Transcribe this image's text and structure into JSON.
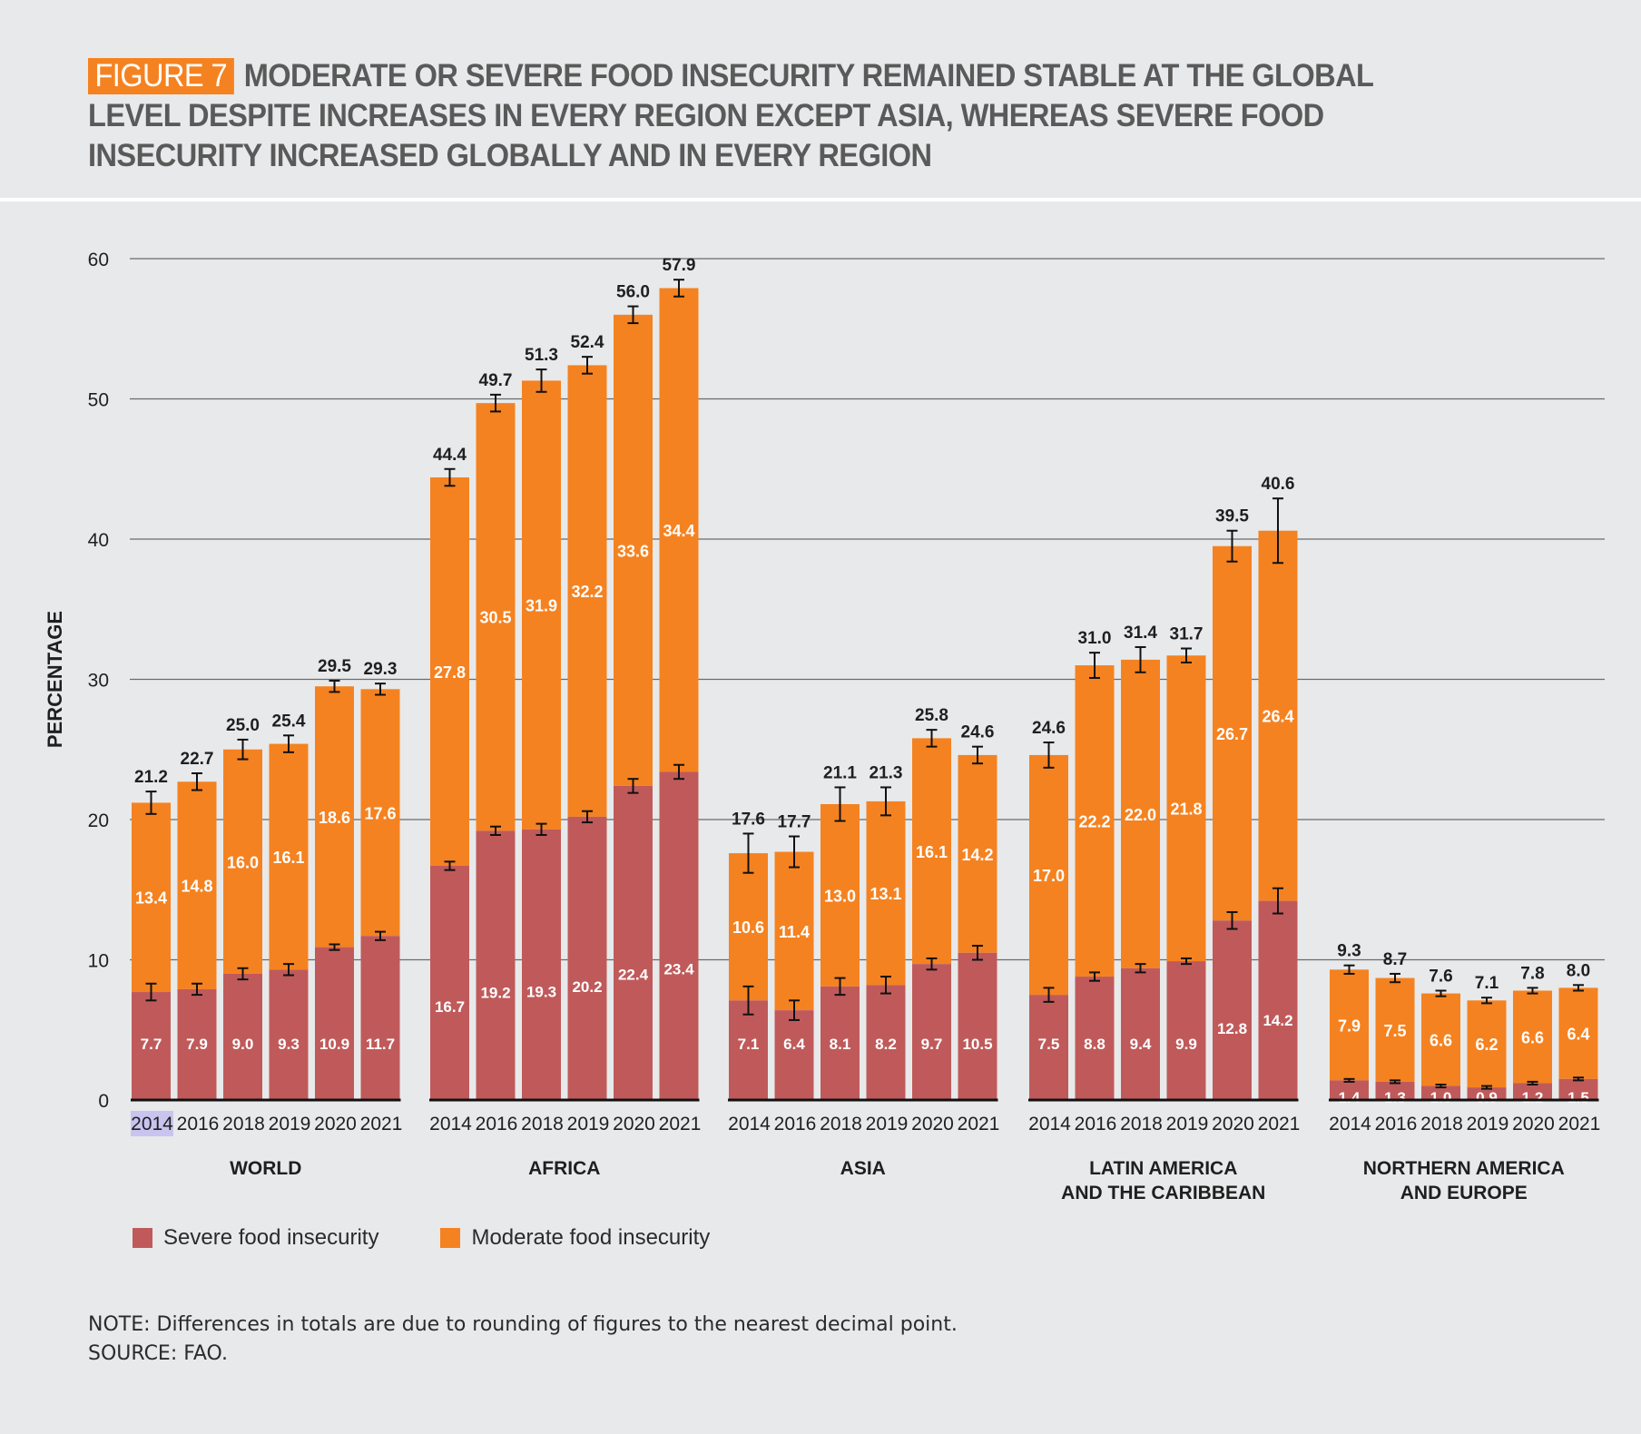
{
  "title": {
    "badge": "FIGURE 7",
    "text": "MODERATE OR SEVERE FOOD INSECURITY REMAINED STABLE AT THE GLOBAL LEVEL DESPITE INCREASES IN EVERY REGION EXCEPT ASIA, WHEREAS SEVERE FOOD INSECURITY INCREASED GLOBALLY AND IN EVERY REGION"
  },
  "legend": {
    "severe": "Severe food insecurity",
    "moderate": "Moderate food insecurity"
  },
  "note": {
    "line1": "NOTE: Differences in totals are due to rounding of figures to the nearest decimal point.",
    "line2": "SOURCE: FAO."
  },
  "colors": {
    "severe": "#c05a5a",
    "moderate": "#f58220",
    "grid": "#6b6b6b",
    "text": "#1f1f1f",
    "highlight": "#c7c5ef"
  },
  "chart_data": {
    "type": "bar",
    "stacked": true,
    "ylabel": "PERCENTAGE",
    "ylim": [
      0,
      60
    ],
    "yticks": [
      0,
      10,
      20,
      30,
      40,
      50,
      60
    ],
    "years": [
      "2014",
      "2016",
      "2018",
      "2019",
      "2020",
      "2021"
    ],
    "highlighted_tick": "2014",
    "groups": [
      {
        "name": "WORLD",
        "label_lines": [
          "WORLD"
        ],
        "severe": [
          7.7,
          7.9,
          9.0,
          9.3,
          10.9,
          11.7
        ],
        "moderate": [
          13.4,
          14.8,
          16.0,
          16.1,
          18.6,
          17.6
        ],
        "total": [
          21.2,
          22.7,
          25.0,
          25.4,
          29.5,
          29.3
        ],
        "total_err": [
          0.8,
          0.6,
          0.7,
          0.6,
          0.4,
          0.4
        ],
        "severe_err": [
          0.6,
          0.4,
          0.4,
          0.4,
          0.2,
          0.3
        ]
      },
      {
        "name": "AFRICA",
        "label_lines": [
          "AFRICA"
        ],
        "severe": [
          16.7,
          19.2,
          19.3,
          20.2,
          22.4,
          23.4
        ],
        "moderate": [
          27.8,
          30.5,
          31.9,
          32.2,
          33.6,
          34.4
        ],
        "total": [
          44.4,
          49.7,
          51.3,
          52.4,
          56.0,
          57.9
        ],
        "total_err": [
          0.6,
          0.6,
          0.8,
          0.6,
          0.6,
          0.6
        ],
        "severe_err": [
          0.3,
          0.3,
          0.4,
          0.4,
          0.5,
          0.5
        ]
      },
      {
        "name": "ASIA",
        "label_lines": [
          "ASIA"
        ],
        "severe": [
          7.1,
          6.4,
          8.1,
          8.2,
          9.7,
          10.5
        ],
        "moderate": [
          10.6,
          11.4,
          13.0,
          13.1,
          16.1,
          14.2
        ],
        "total": [
          17.6,
          17.7,
          21.1,
          21.3,
          25.8,
          24.6
        ],
        "total_err": [
          1.4,
          1.1,
          1.2,
          1.0,
          0.6,
          0.6
        ],
        "severe_err": [
          1.0,
          0.7,
          0.6,
          0.6,
          0.4,
          0.5
        ]
      },
      {
        "name": "LATIN AMERICA AND THE CARIBBEAN",
        "label_lines": [
          "LATIN AMERICA",
          "AND THE CARIBBEAN"
        ],
        "severe": [
          7.5,
          8.8,
          9.4,
          9.9,
          12.8,
          14.2
        ],
        "moderate": [
          17.0,
          22.2,
          22.0,
          21.8,
          26.7,
          26.4
        ],
        "total": [
          24.6,
          31.0,
          31.4,
          31.7,
          39.5,
          40.6
        ],
        "total_err": [
          0.9,
          0.9,
          0.9,
          0.5,
          1.1,
          2.3
        ],
        "severe_err": [
          0.5,
          0.3,
          0.3,
          0.2,
          0.6,
          0.9
        ]
      },
      {
        "name": "NORTHERN AMERICA AND EUROPE",
        "label_lines": [
          "NORTHERN AMERICA",
          "AND EUROPE"
        ],
        "severe": [
          1.4,
          1.3,
          1.0,
          0.9,
          1.2,
          1.5
        ],
        "moderate": [
          7.9,
          7.5,
          6.6,
          6.2,
          6.6,
          6.4
        ],
        "total": [
          9.3,
          8.7,
          7.6,
          7.1,
          7.8,
          8.0
        ],
        "total_err": [
          0.3,
          0.3,
          0.2,
          0.2,
          0.2,
          0.2
        ],
        "severe_err": [
          0.1,
          0.1,
          0.1,
          0.1,
          0.1,
          0.1
        ]
      }
    ]
  }
}
